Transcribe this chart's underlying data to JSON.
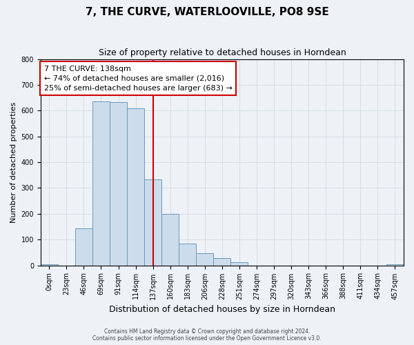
{
  "title": "7, THE CURVE, WATERLOOVILLE, PO8 9SE",
  "subtitle": "Size of property relative to detached houses in Horndean",
  "xlabel": "Distribution of detached houses by size in Horndean",
  "ylabel": "Number of detached properties",
  "bin_labels": [
    "0sqm",
    "23sqm",
    "46sqm",
    "69sqm",
    "91sqm",
    "114sqm",
    "137sqm",
    "160sqm",
    "183sqm",
    "206sqm",
    "228sqm",
    "251sqm",
    "274sqm",
    "297sqm",
    "320sqm",
    "343sqm",
    "366sqm",
    "388sqm",
    "411sqm",
    "434sqm",
    "457sqm"
  ],
  "bar_heights": [
    5,
    0,
    143,
    636,
    632,
    610,
    333,
    200,
    84,
    46,
    27,
    12,
    0,
    0,
    0,
    0,
    0,
    0,
    0,
    0,
    5
  ],
  "bar_color": "#ccdcec",
  "bar_edge_color": "#6699bb",
  "property_label": "7 THE CURVE: 138sqm",
  "annotation_line1": "← 74% of detached houses are smaller (2,016)",
  "annotation_line2": "25% of semi-detached houses are larger (683) →",
  "vline_color": "#cc0000",
  "vline_x": 6.5,
  "annotation_box_edge": "#cc0000",
  "ylim": [
    0,
    800
  ],
  "yticks": [
    0,
    100,
    200,
    300,
    400,
    500,
    600,
    700,
    800
  ],
  "footnote1": "Contains HM Land Registry data © Crown copyright and database right 2024.",
  "footnote2": "Contains public sector information licensed under the Open Government Licence v3.0.",
  "background_color": "#eef2f7",
  "plot_background": "#eef2f7",
  "grid_color": "#d0d8e0",
  "title_fontsize": 11,
  "subtitle_fontsize": 9,
  "tick_fontsize": 7,
  "ylabel_fontsize": 8,
  "xlabel_fontsize": 9,
  "footnote_fontsize": 5.5,
  "annotation_fontsize": 8
}
